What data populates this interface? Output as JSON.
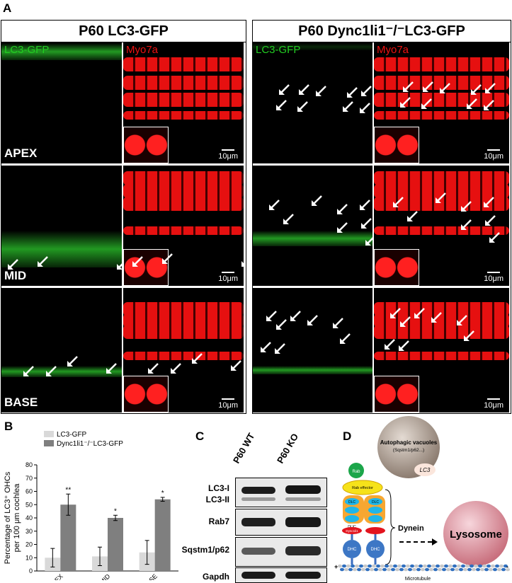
{
  "panel_a": {
    "letter": "A",
    "columns": [
      {
        "title": "P60 LC3-GFP",
        "green_label": "LC3-GFP",
        "red_label": "Myo7a"
      },
      {
        "title": "P60 Dync1li1⁻/⁻LC3-GFP",
        "green_label": "LC3-GFP",
        "red_label": "Myo7a"
      }
    ],
    "rows": [
      "APEX",
      "MID",
      "BASE"
    ],
    "scale_label": "10μm",
    "green_color": "#22cc22",
    "red_color": "#ee1111"
  },
  "panel_b": {
    "letter": "B"
  },
  "chart_data": {
    "type": "bar",
    "categories": [
      "APEX",
      "MID",
      "BASE"
    ],
    "series": [
      {
        "name": "LC3-GFP",
        "values": [
          10,
          11,
          14
        ],
        "errors": [
          7,
          7,
          9
        ],
        "color": "#d9d9d9"
      },
      {
        "name": "Dync1li1⁻/⁻LC3-GFP",
        "values": [
          50,
          40,
          54
        ],
        "errors": [
          8,
          2,
          1.5
        ],
        "color": "#7f7f7f"
      }
    ],
    "significance": [
      "**",
      "*",
      "*"
    ],
    "ylabel": "Percentage of LC3⁺ OHCs per 100 μm cochlea",
    "ylim": [
      0,
      80
    ],
    "yticks": [
      0,
      10,
      20,
      30,
      40,
      50,
      60,
      70,
      80
    ],
    "legend": "top-left"
  },
  "panel_c": {
    "letter": "C",
    "lanes": [
      "P60 WT",
      "P60 KO"
    ],
    "blots": [
      "LC3-I",
      "LC3-II",
      "Rab7",
      "Sqstm1/p62",
      "Gapdh"
    ]
  },
  "panel_d": {
    "letter": "D",
    "vacuole_label": "Autophagic vacuoles",
    "vacuole_sub": "(Sqstm1/p62...)",
    "lc3": "LC3",
    "rab": "Rab",
    "rab_effector": "Rab effector",
    "dlc": "DLC",
    "dlic": "DLIC",
    "dync1li1": "Dync1li1",
    "dhc": "DHC",
    "dynein": "Dynein",
    "lysosome": "Lysosome",
    "microtubule": "Microtubule",
    "plus": "+",
    "minus": "-"
  }
}
